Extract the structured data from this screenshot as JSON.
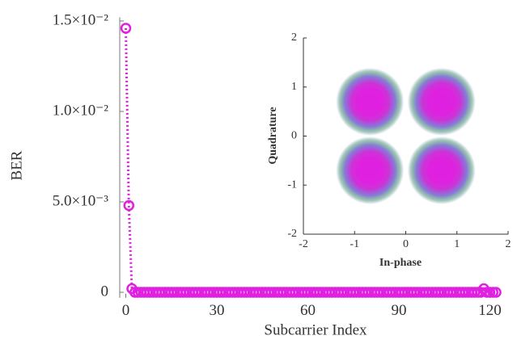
{
  "chart_data": [
    {
      "type": "line",
      "x_label": "Subcarrier Index",
      "y_label": "BER",
      "x": [
        0,
        1,
        2,
        3,
        4,
        5,
        6,
        7,
        8,
        9,
        10,
        11,
        12,
        13,
        14,
        15,
        16,
        17,
        18,
        19,
        20,
        21,
        22,
        23,
        24,
        25,
        26,
        27,
        28,
        29,
        30,
        31,
        32,
        33,
        34,
        35,
        36,
        37,
        38,
        39,
        40,
        41,
        42,
        43,
        44,
        45,
        46,
        47,
        48,
        49,
        50,
        51,
        52,
        53,
        54,
        55,
        56,
        57,
        58,
        59,
        60,
        61,
        62,
        63,
        64,
        65,
        66,
        67,
        68,
        69,
        70,
        71,
        72,
        73,
        74,
        75,
        76,
        77,
        78,
        79,
        80,
        81,
        82,
        83,
        84,
        85,
        86,
        87,
        88,
        89,
        90,
        91,
        92,
        93,
        94,
        95,
        96,
        97,
        98,
        99,
        100,
        101,
        102,
        103,
        104,
        105,
        106,
        107,
        108,
        109,
        110,
        111,
        112,
        113,
        114,
        115,
        116,
        117,
        118,
        119,
        120,
        121,
        122
      ],
      "series": [
        {
          "color": "#e020e0",
          "values": [
            0.0146,
            0.0048,
            0.0002,
            0,
            0,
            0,
            0,
            0,
            0,
            0,
            0,
            0,
            0,
            0,
            0,
            0,
            0,
            0,
            0,
            0,
            0,
            0,
            0,
            0,
            0,
            0,
            0,
            0,
            0,
            0,
            0,
            0,
            0,
            0,
            0,
            0,
            0,
            0,
            0,
            0,
            0,
            0,
            0,
            0,
            0,
            0,
            0,
            0,
            0,
            0,
            0,
            0,
            0,
            0,
            0,
            0,
            0,
            0,
            0,
            0,
            0,
            0,
            0,
            0,
            0,
            0,
            0,
            0,
            0,
            0,
            0,
            0,
            0,
            0,
            0,
            0,
            0,
            0,
            0,
            0,
            0,
            0,
            0,
            0,
            0,
            0,
            0,
            0,
            0,
            0,
            0,
            0,
            0,
            0,
            0,
            0,
            0,
            0,
            0,
            0,
            0,
            0,
            0,
            0,
            0,
            0,
            0,
            0,
            0,
            0,
            0,
            0,
            0,
            0,
            0,
            0,
            0,
            0,
            0.0002,
            0,
            0,
            0,
            0
          ]
        }
      ],
      "xlim": [
        -2,
        126
      ],
      "xticks": [
        0,
        30,
        60,
        90,
        120
      ],
      "ylim": [
        -0.0003,
        0.0152
      ],
      "yticks": [
        0,
        {
          "value": 0.005,
          "label": "5.0×10⁻³"
        },
        {
          "value": 0.01,
          "label": "1.0×10⁻²"
        },
        {
          "value": 0.015,
          "label": "1.5×10⁻²"
        }
      ]
    },
    {
      "type": "scatter",
      "x_label": "In-phase",
      "y_label": "Quadrature",
      "x": [
        -0.7,
        0.7,
        -0.7,
        0.7
      ],
      "y": [
        0.7,
        0.7,
        -0.7,
        -0.7
      ],
      "color": "#e020e0",
      "xlim": [
        -2,
        2
      ],
      "xticks": [
        -2,
        -1,
        0,
        1,
        2
      ],
      "ylim": [
        -2,
        2
      ],
      "yticks": [
        -2,
        -1,
        0,
        1,
        2
      ]
    }
  ]
}
